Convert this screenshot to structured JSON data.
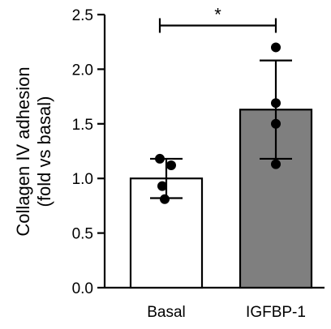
{
  "chart_data": {
    "type": "bar",
    "ylabel_line1": "Collagen IV adhesion",
    "ylabel_line2": "(fold vs basal)",
    "xlabel": "",
    "ylim": [
      0,
      2.5
    ],
    "yticks": [
      0.0,
      0.5,
      1.0,
      1.5,
      2.0,
      2.5
    ],
    "ytick_labels": [
      "0.0",
      "0.5",
      "1.0",
      "1.5",
      "2.0",
      "2.5"
    ],
    "categories": [
      "Basal",
      "IGFBP-1"
    ],
    "values": [
      1.0,
      1.63
    ],
    "errors": [
      0.18,
      0.45
    ],
    "bar_colors": [
      "#ffffff",
      "#7f7f7f"
    ],
    "points": [
      [
        1.18,
        1.12,
        0.93,
        0.81
      ],
      [
        2.2,
        1.69,
        1.5,
        1.13
      ]
    ],
    "significance": {
      "from": 0,
      "to": 1,
      "y": 2.4,
      "label": "*"
    }
  }
}
